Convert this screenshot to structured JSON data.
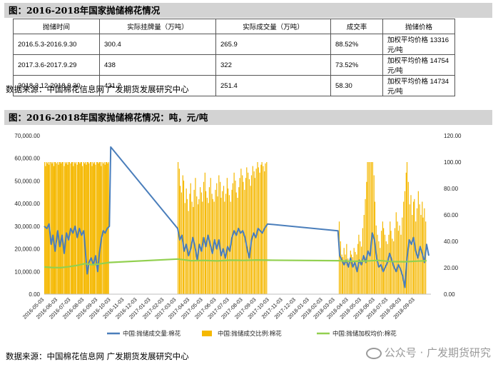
{
  "section1": {
    "title": "图：2016-2018年国家抛储棉花情况"
  },
  "table": {
    "headers": [
      "抛储时间",
      "实际挂牌量（万吨）",
      "实际成交量（万吨）",
      "成交率",
      "抛储价格"
    ],
    "rows": [
      [
        "2016.5.3-2016.9.30",
        "300.4",
        "265.9",
        "88.52%",
        "加权平均价格 13316 元/吨"
      ],
      [
        "2017.3.6-2017.9.29",
        "438",
        "322",
        "73.52%",
        "加权平均价格 14754 元/吨"
      ],
      [
        "2018.3.12-2018.9.30",
        "431.2",
        "251.4",
        "58.30",
        "加权平均价格 14734 元/吨"
      ]
    ]
  },
  "source1": "数据来源：中国棉花信息网 广发期货发展研究中心",
  "section2": {
    "title": "图：2016-2018年国家抛储棉花情况：吨，元/吨"
  },
  "source2": "数据来源：中国棉花信息网 广发期货发展研究中心",
  "watermark": "公众号 · 广发期货研究",
  "chart_data": {
    "type": "bar+line",
    "y_left": {
      "ticks": [
        "0.00",
        "10,000.00",
        "20,000.00",
        "30,000.00",
        "40,000.00",
        "50,000.00",
        "60,000.00",
        "70,000.00"
      ],
      "lim": [
        0,
        70000
      ]
    },
    "y_right": {
      "ticks": [
        "0.00",
        "20.00",
        "40.00",
        "60.00",
        "80.00",
        "100.00",
        "120.00"
      ],
      "lim": [
        0,
        120
      ]
    },
    "x_start": "2016-05-03",
    "x_end": "2018-10-10",
    "x_ticks": [
      "2016-05-03",
      "2016-06-03",
      "2016-07-03",
      "2016-08-03",
      "2016-09-03",
      "2016-10-03",
      "2016-11-03",
      "2016-12-03",
      "2017-01-03",
      "2017-02-03",
      "2017-03-03",
      "2017-04-03",
      "2017-05-03",
      "2017-06-03",
      "2017-07-03",
      "2017-08-03",
      "2017-09-03",
      "2017-10-03",
      "2017-11-03",
      "2017-12-03",
      "2018-01-03",
      "2018-02-03",
      "2018-03-03",
      "2018-04-03",
      "2018-05-03",
      "2018-06-03",
      "2018-07-03",
      "2018-08-03",
      "2018-09-03"
    ],
    "series": [
      {
        "name": "中国:抛储成交量:棉花",
        "axis": "left",
        "kind": "line",
        "color": "#4a7ebb",
        "points": [
          [
            "2016-05-03",
            30000
          ],
          [
            "2016-05-09",
            29000
          ],
          [
            "2016-05-14",
            31000
          ],
          [
            "2016-05-19",
            22000
          ],
          [
            "2016-05-23",
            26000
          ],
          [
            "2016-05-28",
            19000
          ],
          [
            "2016-06-03",
            28000
          ],
          [
            "2016-06-08",
            21000
          ],
          [
            "2016-06-13",
            26000
          ],
          [
            "2016-06-18",
            18000
          ],
          [
            "2016-06-23",
            27000
          ],
          [
            "2016-06-28",
            24000
          ],
          [
            "2016-07-03",
            29000
          ],
          [
            "2016-07-08",
            27000
          ],
          [
            "2016-07-13",
            30000
          ],
          [
            "2016-07-18",
            25000
          ],
          [
            "2016-07-23",
            29000
          ],
          [
            "2016-07-28",
            26000
          ],
          [
            "2016-08-02",
            28000
          ],
          [
            "2016-08-06",
            18000
          ],
          [
            "2016-08-10",
            9000
          ],
          [
            "2016-08-14",
            14000
          ],
          [
            "2016-08-19",
            16000
          ],
          [
            "2016-08-24",
            13000
          ],
          [
            "2016-08-29",
            17000
          ],
          [
            "2016-09-03",
            10000
          ],
          [
            "2016-09-07",
            18000
          ],
          [
            "2016-09-12",
            25000
          ],
          [
            "2016-09-16",
            28000
          ],
          [
            "2016-09-20",
            27000
          ],
          [
            "2016-09-25",
            29000
          ],
          [
            "2016-09-30",
            30000
          ],
          [
            "2016-10-03",
            65000
          ],
          [
            "2017-03-06",
            29000
          ],
          [
            "2017-03-11",
            24000
          ],
          [
            "2017-03-16",
            26000
          ],
          [
            "2017-03-21",
            19000
          ],
          [
            "2017-03-26",
            22000
          ],
          [
            "2017-03-31",
            17000
          ],
          [
            "2017-04-05",
            20000
          ],
          [
            "2017-04-10",
            25000
          ],
          [
            "2017-04-15",
            21000
          ],
          [
            "2017-04-20",
            15000
          ],
          [
            "2017-04-25",
            22000
          ],
          [
            "2017-04-30",
            19000
          ],
          [
            "2017-05-05",
            25000
          ],
          [
            "2017-05-10",
            21000
          ],
          [
            "2017-05-15",
            26000
          ],
          [
            "2017-05-20",
            22000
          ],
          [
            "2017-05-25",
            18000
          ],
          [
            "2017-05-30",
            24000
          ],
          [
            "2017-06-04",
            20000
          ],
          [
            "2017-06-09",
            24000
          ],
          [
            "2017-06-14",
            17000
          ],
          [
            "2017-06-19",
            20000
          ],
          [
            "2017-06-24",
            16000
          ],
          [
            "2017-06-29",
            21000
          ],
          [
            "2017-07-04",
            19000
          ],
          [
            "2017-07-09",
            25000
          ],
          [
            "2017-07-14",
            28000
          ],
          [
            "2017-07-19",
            26000
          ],
          [
            "2017-07-24",
            29000
          ],
          [
            "2017-07-29",
            27000
          ],
          [
            "2017-08-03",
            28000
          ],
          [
            "2017-08-08",
            25000
          ],
          [
            "2017-08-13",
            20000
          ],
          [
            "2017-08-18",
            16000
          ],
          [
            "2017-08-23",
            24000
          ],
          [
            "2017-08-28",
            27000
          ],
          [
            "2017-09-02",
            25000
          ],
          [
            "2017-09-07",
            29000
          ],
          [
            "2017-09-12",
            28000
          ],
          [
            "2017-09-17",
            27000
          ],
          [
            "2017-09-22",
            29000
          ],
          [
            "2017-09-29",
            31000
          ],
          [
            "2018-03-10",
            28000
          ],
          [
            "2018-03-14",
            17000
          ],
          [
            "2018-03-19",
            15000
          ],
          [
            "2018-03-24",
            13000
          ],
          [
            "2018-03-29",
            15000
          ],
          [
            "2018-04-03",
            12000
          ],
          [
            "2018-04-08",
            16000
          ],
          [
            "2018-04-13",
            12000
          ],
          [
            "2018-04-18",
            14000
          ],
          [
            "2018-04-23",
            10000
          ],
          [
            "2018-04-28",
            15000
          ],
          [
            "2018-05-03",
            13000
          ],
          [
            "2018-05-08",
            17000
          ],
          [
            "2018-05-13",
            14000
          ],
          [
            "2018-05-18",
            19000
          ],
          [
            "2018-05-23",
            17000
          ],
          [
            "2018-05-28",
            27000
          ],
          [
            "2018-06-02",
            24000
          ],
          [
            "2018-06-07",
            16000
          ],
          [
            "2018-06-12",
            12000
          ],
          [
            "2018-06-17",
            13000
          ],
          [
            "2018-06-22",
            10000
          ],
          [
            "2018-06-27",
            12000
          ],
          [
            "2018-07-02",
            14000
          ],
          [
            "2018-07-07",
            18000
          ],
          [
            "2018-07-12",
            15000
          ],
          [
            "2018-07-17",
            12000
          ],
          [
            "2018-07-22",
            10000
          ],
          [
            "2018-07-27",
            13000
          ],
          [
            "2018-08-01",
            11000
          ],
          [
            "2018-08-06",
            8000
          ],
          [
            "2018-08-11",
            3000
          ],
          [
            "2018-08-16",
            16000
          ],
          [
            "2018-08-21",
            24000
          ],
          [
            "2018-08-26",
            22000
          ],
          [
            "2018-08-31",
            25000
          ],
          [
            "2018-09-05",
            19000
          ],
          [
            "2018-09-10",
            16000
          ],
          [
            "2018-09-15",
            21000
          ],
          [
            "2018-09-20",
            18000
          ],
          [
            "2018-09-25",
            14000
          ],
          [
            "2018-09-30",
            22000
          ],
          [
            "2018-10-05",
            17000
          ]
        ]
      },
      {
        "name": "中国:抛储成交比例:棉花",
        "axis": "right",
        "kind": "bar",
        "color": "#f5b800",
        "periods": [
          {
            "start": "2016-05-03",
            "end": "2016-09-30",
            "values": [
              100,
              97,
              100,
              99,
              100,
              98,
              100,
              100,
              99,
              100,
              97,
              100,
              100,
              99,
              100,
              98,
              100,
              100,
              99,
              100,
              100,
              97,
              100,
              99,
              100,
              98,
              100,
              100,
              99,
              100,
              100,
              97,
              100,
              99,
              100,
              98,
              100,
              100,
              99,
              100,
              100,
              97,
              100,
              99,
              100,
              98,
              100,
              100,
              99,
              100,
              100,
              97,
              100,
              99,
              100,
              98,
              100,
              100,
              99,
              100,
              100,
              97,
              100,
              99,
              100,
              98,
              100,
              100,
              99,
              100
            ]
          },
          {
            "start": "2017-03-06",
            "end": "2017-09-29",
            "values": [
              100,
              95,
              82,
              77,
              90,
              86,
              69,
              80,
              72,
              63,
              76,
              84,
              70,
              66,
              79,
              88,
              74,
              68,
              72,
              81,
              77,
              70,
              85,
              92,
              78,
              73,
              69,
              81,
              88,
              76,
              72,
              70,
              79,
              84,
              74,
              90,
              85,
              73,
              78,
              82,
              70,
              76,
              88,
              80,
              75,
              70,
              79,
              84,
              92,
              86,
              77,
              73,
              81,
              88,
              95,
              90,
              85,
              79,
              88,
              96,
              92,
              87,
              82,
              90,
              97,
              93,
              88,
              95,
              100,
              96,
              92,
              98,
              100,
              97,
              93,
              99,
              100
            ]
          },
          {
            "start": "2018-03-12",
            "end": "2018-09-30",
            "values": [
              55,
              40,
              30,
              28,
              35,
              30,
              38,
              27,
              25,
              33,
              30,
              28,
              35,
              32,
              30,
              38,
              45,
              40,
              36,
              50,
              60,
              72,
              85,
              100,
              100,
              100,
              100,
              100,
              90,
              70,
              52,
              45,
              40,
              35,
              48,
              55,
              50,
              45,
              40,
              38,
              45,
              55,
              48,
              42,
              40,
              50,
              62,
              55,
              48,
              52,
              45,
              58,
              70,
              78,
              92,
              100,
              85,
              68,
              75,
              60,
              70,
              72,
              55,
              65,
              78,
              68,
              60,
              70,
              58,
              65,
              55
            ]
          }
        ]
      },
      {
        "name": "中国:抛储加权均价:棉花",
        "axis": "left",
        "kind": "line",
        "color": "#92d050",
        "points": [
          [
            "2016-05-03",
            12000
          ],
          [
            "2016-05-20",
            11800
          ],
          [
            "2016-06-10",
            11700
          ],
          [
            "2016-07-01",
            12200
          ],
          [
            "2016-07-20",
            12800
          ],
          [
            "2016-08-05",
            13500
          ],
          [
            "2016-08-20",
            13000
          ],
          [
            "2016-09-05",
            13300
          ],
          [
            "2016-09-30",
            14000
          ],
          [
            "2017-03-06",
            15500
          ],
          [
            "2017-04-05",
            14800
          ],
          [
            "2017-05-05",
            14900
          ],
          [
            "2017-06-05",
            14700
          ],
          [
            "2017-07-05",
            15000
          ],
          [
            "2017-08-05",
            14900
          ],
          [
            "2017-09-05",
            15100
          ],
          [
            "2017-09-29",
            15000
          ],
          [
            "2018-03-12",
            14800
          ],
          [
            "2018-04-10",
            14500
          ],
          [
            "2018-05-10",
            14600
          ],
          [
            "2018-06-10",
            14900
          ],
          [
            "2018-07-10",
            14400
          ],
          [
            "2018-08-10",
            14300
          ],
          [
            "2018-09-10",
            14600
          ],
          [
            "2018-09-30",
            14800
          ]
        ]
      }
    ],
    "legend_position": "bottom"
  }
}
